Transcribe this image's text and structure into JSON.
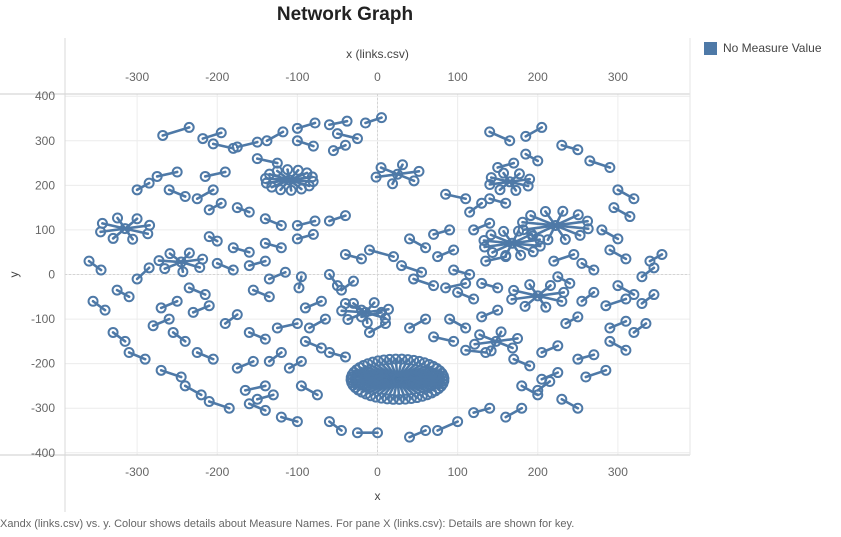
{
  "page": {
    "title": "Network Graph",
    "caption": "Xandx (links.csv) vs. y.  Colour shows details about Measure Names. For pane X (links.csv): Details are shown for key."
  },
  "legend": {
    "label": "No Measure Value",
    "color": "#4e79a7"
  },
  "chart_data": {
    "type": "scatter",
    "title": "Network Graph",
    "xlabel_top": "x (links.csv)",
    "xlabel": "x",
    "ylabel": "y",
    "xlim": [
      -390,
      390
    ],
    "ylim": [
      -405,
      405
    ],
    "x_ticks": [
      -300,
      -200,
      -100,
      0,
      100,
      200,
      300
    ],
    "y_ticks": [
      400,
      300,
      200,
      100,
      0,
      -100,
      -200,
      -300,
      -400
    ],
    "grid": true,
    "legend_position": "top-right",
    "series_color": "#4e79a7",
    "hubs": [
      {
        "x": -110,
        "y": 212,
        "r": 30,
        "n": 14
      },
      {
        "x": 25,
        "y": -235,
        "r": 58,
        "n": 48
      },
      {
        "x": 165,
        "y": 208,
        "r": 26,
        "n": 8
      },
      {
        "x": 222,
        "y": 110,
        "r": 42,
        "n": 12
      },
      {
        "x": 168,
        "y": 70,
        "r": 36,
        "n": 12
      },
      {
        "x": -315,
        "y": 103,
        "r": 32,
        "n": 8
      },
      {
        "x": -245,
        "y": 28,
        "r": 28,
        "n": 7
      },
      {
        "x": 200,
        "y": -48,
        "r": 34,
        "n": 8
      },
      {
        "x": -15,
        "y": -85,
        "r": 30,
        "n": 7
      },
      {
        "x": 148,
        "y": -150,
        "r": 28,
        "n": 6
      },
      {
        "x": 25,
        "y": 225,
        "r": 28,
        "n": 6
      }
    ],
    "links": [
      [
        -268,
        312,
        -235,
        330
      ],
      [
        -218,
        305,
        -195,
        318
      ],
      [
        -205,
        293,
        -180,
        283
      ],
      [
        -175,
        286,
        -150,
        297
      ],
      [
        -138,
        300,
        -118,
        320
      ],
      [
        -100,
        328,
        -78,
        340
      ],
      [
        -60,
        336,
        -38,
        344
      ],
      [
        -15,
        340,
        5,
        352
      ],
      [
        -25,
        305,
        -50,
        316
      ],
      [
        -40,
        290,
        -55,
        278
      ],
      [
        -80,
        288,
        -100,
        300
      ],
      [
        -125,
        250,
        -150,
        260
      ],
      [
        -190,
        230,
        -215,
        220
      ],
      [
        -250,
        230,
        -275,
        220
      ],
      [
        -285,
        205,
        -300,
        190
      ],
      [
        -260,
        190,
        -240,
        175
      ],
      [
        -225,
        170,
        -205,
        190
      ],
      [
        -195,
        160,
        -210,
        145
      ],
      [
        -160,
        140,
        -175,
        150
      ],
      [
        -140,
        125,
        -120,
        110
      ],
      [
        -100,
        110,
        -78,
        120
      ],
      [
        -60,
        120,
        -40,
        132
      ],
      [
        -80,
        90,
        -100,
        80
      ],
      [
        -120,
        60,
        -140,
        70
      ],
      [
        -160,
        50,
        -180,
        60
      ],
      [
        -200,
        75,
        -210,
        85
      ],
      [
        -140,
        30,
        -160,
        20
      ],
      [
        -115,
        5,
        -135,
        -10
      ],
      [
        -95,
        -5,
        -98,
        -30
      ],
      [
        -60,
        0,
        -50,
        -25
      ],
      [
        -30,
        -15,
        -45,
        -35
      ],
      [
        -20,
        35,
        -40,
        45
      ],
      [
        -10,
        55,
        20,
        40
      ],
      [
        30,
        20,
        55,
        5
      ],
      [
        45,
        -10,
        70,
        -25
      ],
      [
        85,
        -30,
        110,
        -20
      ],
      [
        95,
        10,
        115,
        0
      ],
      [
        135,
        30,
        160,
        40
      ],
      [
        130,
        -20,
        150,
        -30
      ],
      [
        95,
        55,
        75,
        40
      ],
      [
        40,
        80,
        60,
        60
      ],
      [
        70,
        90,
        90,
        100
      ],
      [
        120,
        100,
        140,
        115
      ],
      [
        115,
        140,
        130,
        160
      ],
      [
        85,
        180,
        110,
        170
      ],
      [
        140,
        170,
        160,
        160
      ],
      [
        150,
        240,
        170,
        250
      ],
      [
        185,
        270,
        200,
        255
      ],
      [
        165,
        300,
        140,
        320
      ],
      [
        185,
        310,
        205,
        330
      ],
      [
        230,
        290,
        250,
        280
      ],
      [
        265,
        255,
        290,
        240
      ],
      [
        300,
        190,
        320,
        170
      ],
      [
        295,
        150,
        315,
        130
      ],
      [
        280,
        100,
        300,
        80
      ],
      [
        290,
        55,
        310,
        35
      ],
      [
        340,
        30,
        355,
        45
      ],
      [
        330,
        -5,
        345,
        15
      ],
      [
        300,
        -25,
        320,
        -45
      ],
      [
        285,
        -70,
        310,
        -55
      ],
      [
        330,
        -65,
        345,
        -45
      ],
      [
        290,
        -120,
        310,
        -105
      ],
      [
        320,
        -130,
        335,
        -110
      ],
      [
        290,
        -150,
        310,
        -170
      ],
      [
        270,
        -180,
        250,
        -190
      ],
      [
        260,
        -230,
        285,
        -215
      ],
      [
        230,
        -280,
        250,
        -300
      ],
      [
        200,
        -260,
        215,
        -240
      ],
      [
        180,
        -300,
        160,
        -320
      ],
      [
        140,
        -300,
        120,
        -310
      ],
      [
        100,
        -330,
        75,
        -350
      ],
      [
        60,
        -350,
        40,
        -365
      ],
      [
        0,
        -355,
        -25,
        -355
      ],
      [
        -45,
        -350,
        -60,
        -330
      ],
      [
        -100,
        -330,
        -120,
        -320
      ],
      [
        -140,
        -305,
        -160,
        -290
      ],
      [
        -185,
        -300,
        -210,
        -285
      ],
      [
        -220,
        -270,
        -240,
        -250
      ],
      [
        -245,
        -230,
        -270,
        -215
      ],
      [
        -290,
        -190,
        -310,
        -175
      ],
      [
        -315,
        -150,
        -330,
        -130
      ],
      [
        -340,
        -80,
        -355,
        -60
      ],
      [
        -325,
        -35,
        -310,
        -50
      ],
      [
        -345,
        10,
        -360,
        30
      ],
      [
        -300,
        -10,
        -285,
        15
      ],
      [
        -250,
        -60,
        -270,
        -75
      ],
      [
        -210,
        -70,
        -230,
        -85
      ],
      [
        -175,
        -90,
        -190,
        -110
      ],
      [
        -160,
        -130,
        -140,
        -145
      ],
      [
        -125,
        -120,
        -100,
        -110
      ],
      [
        -90,
        -150,
        -70,
        -165
      ],
      [
        -60,
        -175,
        -40,
        -185
      ],
      [
        -120,
        -175,
        -135,
        -195
      ],
      [
        -155,
        -195,
        -175,
        -210
      ],
      [
        -205,
        -190,
        -225,
        -175
      ],
      [
        -240,
        -150,
        -255,
        -130
      ],
      [
        -280,
        -115,
        -260,
        -100
      ],
      [
        -95,
        -250,
        -75,
        -270
      ],
      [
        -130,
        -270,
        -150,
        -280
      ],
      [
        -165,
        -260,
        -140,
        -250
      ],
      [
        -110,
        -210,
        -95,
        -195
      ],
      [
        10,
        -110,
        -10,
        -130
      ],
      [
        40,
        -120,
        60,
        -100
      ],
      [
        -20,
        -95,
        5,
        -85
      ],
      [
        70,
        -140,
        95,
        -150
      ],
      [
        90,
        -100,
        110,
        -120
      ],
      [
        110,
        -170,
        135,
        -175
      ],
      [
        170,
        -190,
        190,
        -205
      ],
      [
        205,
        -175,
        225,
        -160
      ],
      [
        235,
        -110,
        250,
        -95
      ],
      [
        225,
        -220,
        205,
        -235
      ],
      [
        180,
        -250,
        200,
        -270
      ],
      [
        -70,
        -60,
        -90,
        -75
      ],
      [
        -65,
        -100,
        -85,
        -120
      ],
      [
        120,
        -55,
        100,
        -40
      ],
      [
        150,
        -80,
        130,
        -95
      ],
      [
        -180,
        10,
        -200,
        25
      ],
      [
        -215,
        -45,
        -235,
        -30
      ],
      [
        -155,
        -35,
        -135,
        -50
      ],
      [
        -40,
        -65,
        -20,
        -80
      ],
      [
        255,
        -60,
        270,
        -40
      ],
      [
        240,
        -20,
        225,
        -5
      ],
      [
        220,
        30,
        245,
        45
      ],
      [
        270,
        10,
        255,
        25
      ]
    ]
  }
}
